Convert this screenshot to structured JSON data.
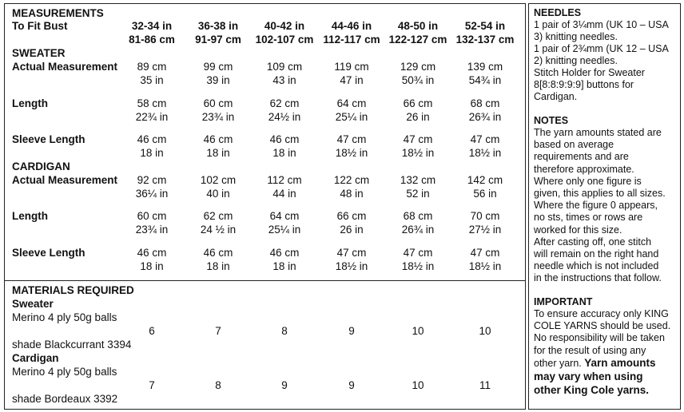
{
  "measurements": {
    "heading": "MEASUREMENTS",
    "fit_label": "To Fit Bust",
    "sizes": [
      [
        "32-34 in",
        "81-86 cm"
      ],
      [
        "36-38 in",
        "91-97 cm"
      ],
      [
        "40-42 in",
        "102-107 cm"
      ],
      [
        "44-46 in",
        "112-117 cm"
      ],
      [
        "48-50 in",
        "122-127 cm"
      ],
      [
        "52-54 in",
        "132-137 cm"
      ]
    ],
    "sections": [
      {
        "heading": "SWEATER",
        "rows": [
          {
            "label": "Actual Measurement",
            "cm": [
              "89 cm",
              "99 cm",
              "109 cm",
              "119 cm",
              "129 cm",
              "139 cm"
            ],
            "in": [
              "35 in",
              "39 in",
              "43 in",
              "47 in",
              "50¾ in",
              "54¾ in"
            ]
          },
          {
            "label": "Length",
            "cm": [
              "58 cm",
              "60 cm",
              "62 cm",
              "64 cm",
              "66 cm",
              "68 cm"
            ],
            "in": [
              "22¾ in",
              "23¾ in",
              "24½ in",
              "25¼ in",
              "26 in",
              "26¾ in"
            ]
          },
          {
            "label": "Sleeve Length",
            "cm": [
              "46 cm",
              "46 cm",
              "46 cm",
              "47 cm",
              "47 cm",
              "47 cm"
            ],
            "in": [
              "18 in",
              "18 in",
              "18 in",
              "18½ in",
              "18½ in",
              "18½ in"
            ]
          }
        ]
      },
      {
        "heading": "CARDIGAN",
        "rows": [
          {
            "label": "Actual Measurement",
            "cm": [
              "92 cm",
              "102 cm",
              "112 cm",
              "122 cm",
              "132 cm",
              "142 cm"
            ],
            "in": [
              "36¼ in",
              "40 in",
              "44 in",
              "48 in",
              "52 in",
              "56 in"
            ]
          },
          {
            "label": "Length",
            "cm": [
              "60 cm",
              "62 cm",
              "64 cm",
              "66 cm",
              "68 cm",
              "70 cm"
            ],
            "in": [
              "23¾ in",
              "24 ½ in",
              "25¼ in",
              "26 in",
              "26¾ in",
              "27½ in"
            ]
          },
          {
            "label": "Sleeve Length",
            "cm": [
              "46 cm",
              "46 cm",
              "46 cm",
              "47 cm",
              "47 cm",
              "47 cm"
            ],
            "in": [
              "18 in",
              "18 in",
              "18 in",
              "18½ in",
              "18½ in",
              "18½ in"
            ]
          }
        ]
      }
    ]
  },
  "materials": {
    "heading": "MATERIALS REQUIRED",
    "items": [
      {
        "heading": "Sweater",
        "yarn": "Merino 4 ply  50g balls",
        "shade": "shade Blackcurrant 3394",
        "balls": [
          "6",
          "7",
          "8",
          "9",
          "10",
          "10"
        ]
      },
      {
        "heading": "Cardigan",
        "yarn": "Merino 4 ply  50g balls",
        "shade": "shade Bordeaux 3392",
        "balls": [
          "7",
          "8",
          "9",
          "9",
          "10",
          "11"
        ]
      }
    ]
  },
  "needles": {
    "heading": "NEEDLES",
    "lines": [
      "1 pair of 3¼mm (UK 10 – USA",
      "3) knitting needles.",
      "1 pair of 2¾mm (UK 12 – USA",
      "2) knitting needles.",
      "Stitch Holder for Sweater",
      "8[8:8:9:9:9] buttons for",
      "Cardigan."
    ]
  },
  "notes": {
    "heading": "NOTES",
    "lines": [
      "The yarn amounts stated are",
      "based on average",
      "requirements and are",
      "therefore approximate.",
      "Where only one figure is",
      "given, this applies to all sizes.",
      "Where the figure 0 appears,",
      "no sts, times or rows are",
      "worked for this size.",
      "After casting off, one stitch",
      "will remain on the right hand",
      "needle which is not included",
      "in the instructions that follow."
    ]
  },
  "important": {
    "heading": "IMPORTANT",
    "lines": [
      "To ensure accuracy only KING",
      "COLE YARNS should be used.",
      "No responsibility will be taken",
      "for the result of using any",
      "other yarn."
    ],
    "emphasis": [
      "Yarn amounts",
      "may vary when using",
      "other King Cole yarns."
    ]
  }
}
